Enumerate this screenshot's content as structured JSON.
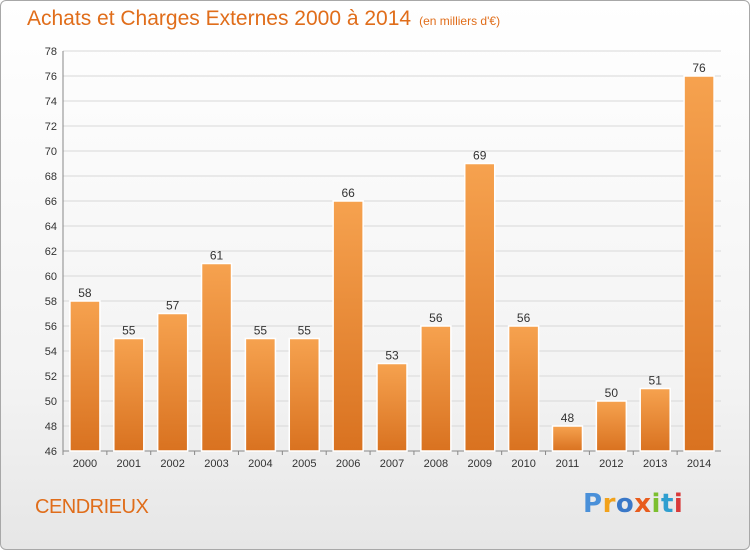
{
  "header": {
    "title": "Achats et Charges Externes 2000 à 2014",
    "subtitle": "(en milliers d'€)"
  },
  "location_label": "CENDRIEUX",
  "logo": {
    "text": "Proxiti"
  },
  "colors": {
    "title": "#e06d1a",
    "bar_top": "#f6a24f",
    "bar_bottom": "#d97220",
    "grid": "#d8d8d8"
  },
  "chart_data": {
    "type": "bar",
    "title": "Achats et Charges Externes 2000 à 2014",
    "subtitle": "(en milliers d'€)",
    "categories": [
      "2000",
      "2001",
      "2002",
      "2003",
      "2004",
      "2005",
      "2006",
      "2007",
      "2008",
      "2009",
      "2010",
      "2011",
      "2012",
      "2013",
      "2014"
    ],
    "values": [
      58,
      55,
      57,
      61,
      55,
      55,
      66,
      53,
      56,
      69,
      56,
      48,
      50,
      51,
      76
    ],
    "ylim": [
      46,
      78
    ],
    "yticks": [
      46,
      48,
      50,
      52,
      54,
      56,
      58,
      60,
      62,
      64,
      66,
      68,
      70,
      72,
      74,
      76,
      78
    ],
    "grid": true,
    "data_labels": true
  }
}
